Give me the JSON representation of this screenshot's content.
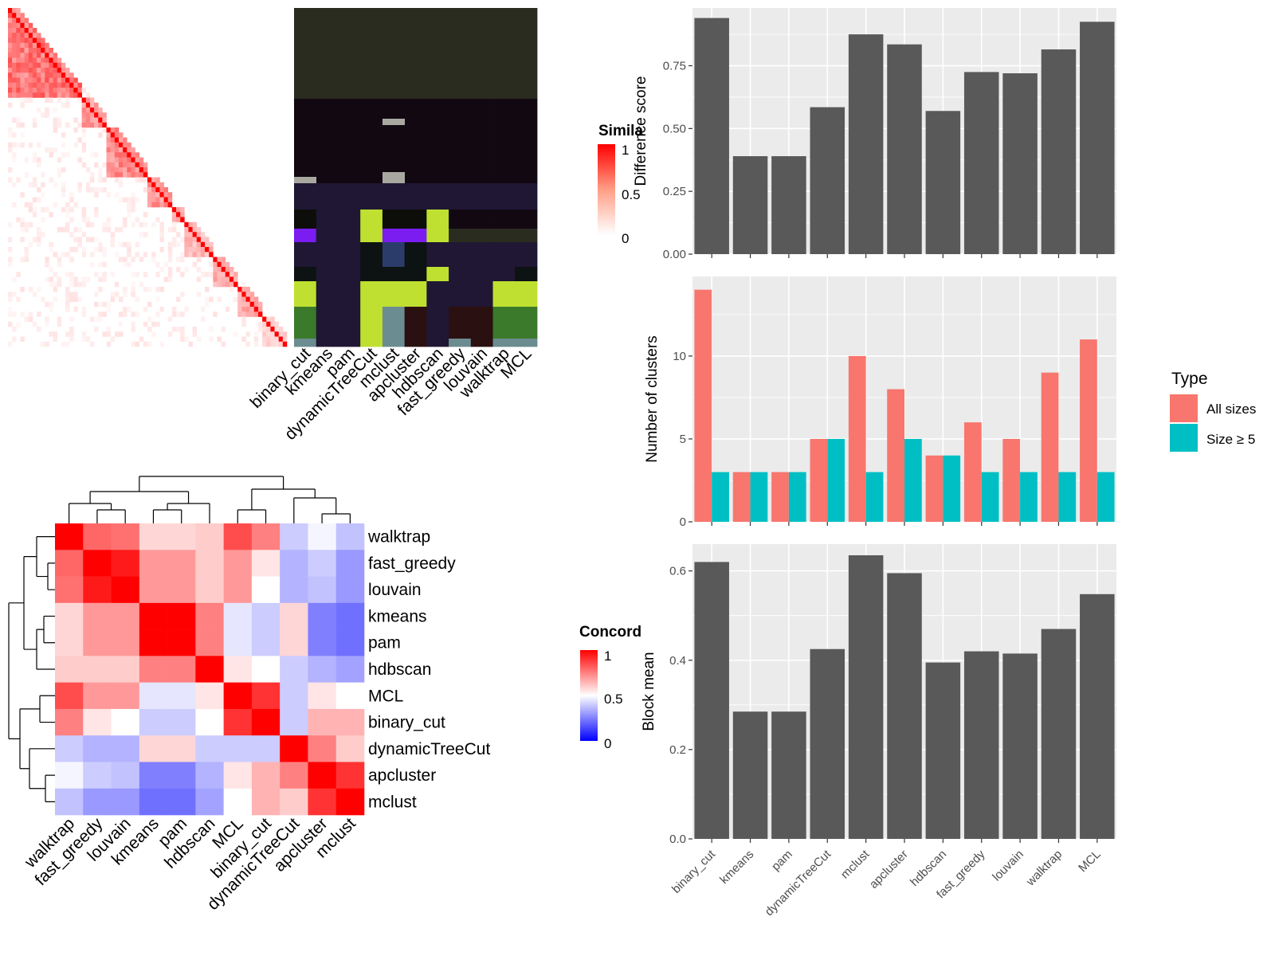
{
  "methods": [
    "binary_cut",
    "kmeans",
    "pam",
    "dynamicTreeCut",
    "mclust",
    "apcluster",
    "hdbscan",
    "fast_greedy",
    "louvain",
    "walktrap",
    "MCL"
  ],
  "concordance_order": [
    "walktrap",
    "fast_greedy",
    "louvain",
    "kmeans",
    "pam",
    "hdbscan",
    "MCL",
    "binary_cut",
    "dynamicTreeCut",
    "apcluster",
    "mclust"
  ],
  "colors": {
    "bar_gray": "#595959",
    "panel_bg": "#ebebeb",
    "all_sizes": "#f8766d",
    "size_ge5": "#00bfc4",
    "heat_high": "#ff0000",
    "heat_mid": "#ffffff",
    "heat_low": "#0000ff"
  },
  "chart_data": [
    {
      "type": "heatmap",
      "legend": {
        "title": "Similarity",
        "title_visible": "Simila",
        "ticks": [
          "1",
          "0.5",
          "0"
        ]
      }
    },
    {
      "type": "heatmap",
      "columns": [
        "binary_cut",
        "kmeans",
        "pam",
        "dynamicTreeCut",
        "mclust",
        "apcluster",
        "hdbscan",
        "fast_greedy",
        "louvain",
        "walktrap",
        "MCL"
      ]
    },
    {
      "type": "heatmap",
      "rows": [
        "walktrap",
        "fast_greedy",
        "louvain",
        "kmeans",
        "pam",
        "hdbscan",
        "MCL",
        "binary_cut",
        "dynamicTreeCut",
        "apcluster",
        "mclust"
      ],
      "columns": [
        "walktrap",
        "fast_greedy",
        "louvain",
        "kmeans",
        "pam",
        "hdbscan",
        "MCL",
        "binary_cut",
        "dynamicTreeCut",
        "apcluster",
        "mclust"
      ],
      "legend": {
        "title": "Concordance",
        "title_visible": "Concord",
        "ticks": [
          "1",
          "0.5",
          "0"
        ]
      },
      "values": [
        [
          1.0,
          0.8,
          0.78,
          0.58,
          0.58,
          0.6,
          0.85,
          0.75,
          0.4,
          0.48,
          0.38
        ],
        [
          0.8,
          1.0,
          0.95,
          0.7,
          0.7,
          0.6,
          0.7,
          0.55,
          0.35,
          0.4,
          0.3
        ],
        [
          0.78,
          0.95,
          1.0,
          0.7,
          0.7,
          0.6,
          0.7,
          0.5,
          0.35,
          0.38,
          0.3
        ],
        [
          0.58,
          0.7,
          0.7,
          1.0,
          1.0,
          0.75,
          0.45,
          0.4,
          0.58,
          0.25,
          0.22
        ],
        [
          0.58,
          0.7,
          0.7,
          1.0,
          1.0,
          0.75,
          0.45,
          0.4,
          0.58,
          0.25,
          0.22
        ],
        [
          0.6,
          0.6,
          0.6,
          0.75,
          0.75,
          1.0,
          0.55,
          0.5,
          0.4,
          0.35,
          0.32
        ],
        [
          0.85,
          0.7,
          0.7,
          0.45,
          0.45,
          0.55,
          1.0,
          0.9,
          0.4,
          0.55,
          0.5
        ],
        [
          0.75,
          0.55,
          0.5,
          0.4,
          0.4,
          0.5,
          0.9,
          1.0,
          0.4,
          0.65,
          0.65
        ],
        [
          0.4,
          0.35,
          0.35,
          0.58,
          0.58,
          0.4,
          0.4,
          0.4,
          1.0,
          0.75,
          0.6
        ],
        [
          0.48,
          0.4,
          0.38,
          0.25,
          0.25,
          0.35,
          0.55,
          0.65,
          0.75,
          1.0,
          0.9
        ],
        [
          0.38,
          0.3,
          0.3,
          0.22,
          0.22,
          0.32,
          0.5,
          0.65,
          0.6,
          0.9,
          1.0
        ]
      ]
    },
    {
      "type": "bar",
      "categories": [
        "binary_cut",
        "kmeans",
        "pam",
        "dynamicTreeCut",
        "mclust",
        "apcluster",
        "hdbscan",
        "fast_greedy",
        "louvain",
        "walktrap",
        "MCL"
      ],
      "values": [
        0.94,
        0.39,
        0.39,
        0.585,
        0.875,
        0.835,
        0.57,
        0.725,
        0.72,
        0.815,
        0.925
      ],
      "ylabel": "Difference score",
      "ylim": [
        0,
        0.98
      ],
      "yticks": [
        "0.00",
        "0.25",
        "0.50",
        "0.75"
      ],
      "grid": true
    },
    {
      "type": "bar",
      "categories": [
        "binary_cut",
        "kmeans",
        "pam",
        "dynamicTreeCut",
        "mclust",
        "apcluster",
        "hdbscan",
        "fast_greedy",
        "louvain",
        "walktrap",
        "MCL"
      ],
      "series": [
        {
          "name": "All sizes",
          "values": [
            14,
            3,
            3,
            5,
            10,
            8,
            4,
            6,
            5,
            9,
            11
          ]
        },
        {
          "name": "Size ≥ 5",
          "values": [
            3,
            3,
            3,
            5,
            3,
            5,
            4,
            3,
            3,
            3,
            3
          ]
        }
      ],
      "ylabel": "Number of clusters",
      "ylim": [
        0,
        14.8
      ],
      "yticks": [
        "0",
        "5",
        "10"
      ],
      "legend": {
        "title": "Type",
        "position": "right"
      },
      "grid": true
    },
    {
      "type": "bar",
      "categories": [
        "binary_cut",
        "kmeans",
        "pam",
        "dynamicTreeCut",
        "mclust",
        "apcluster",
        "hdbscan",
        "fast_greedy",
        "louvain",
        "walktrap",
        "MCL"
      ],
      "values": [
        0.62,
        0.285,
        0.285,
        0.425,
        0.635,
        0.595,
        0.395,
        0.42,
        0.415,
        0.47,
        0.548
      ],
      "ylabel": "Block mean",
      "ylim": [
        0,
        0.66
      ],
      "yticks": [
        "0.0",
        "0.2",
        "0.4",
        "0.6"
      ],
      "grid": true
    }
  ]
}
